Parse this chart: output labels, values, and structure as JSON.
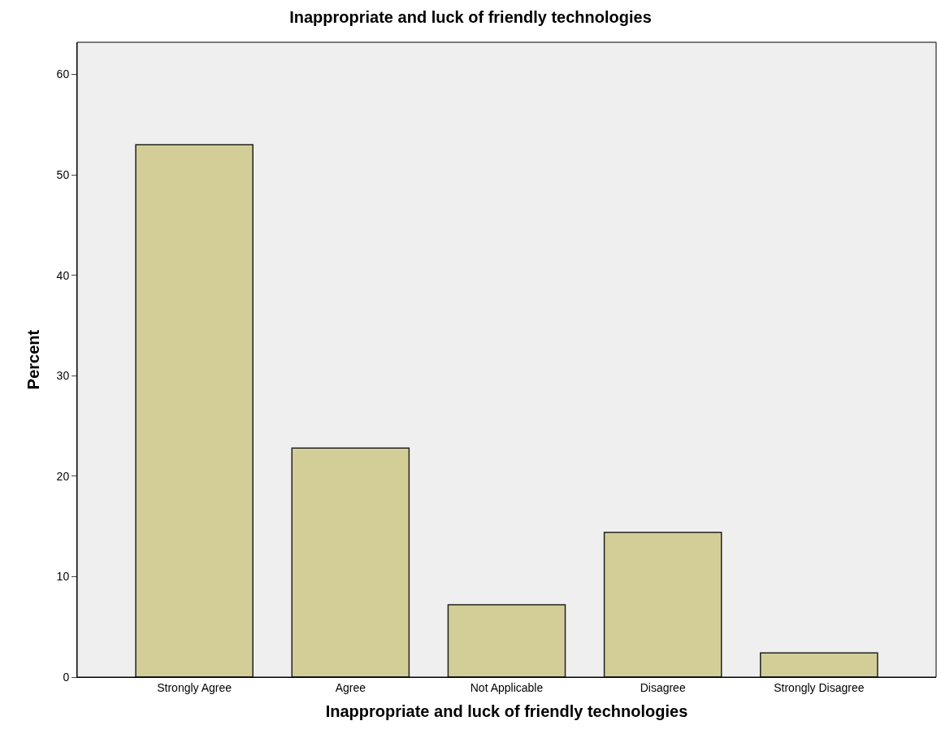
{
  "chart_data": {
    "type": "bar",
    "title": "Inappropriate and luck of friendly technologies",
    "xlabel": "Inappropriate and luck of friendly technologies",
    "ylabel": "Percent",
    "categories": [
      "Strongly Agree",
      "Agree",
      "Not Applicable",
      "Disagree",
      "Strongly Disagree"
    ],
    "values": [
      53.0,
      22.8,
      7.2,
      14.4,
      2.4
    ],
    "color": "#d3ce97",
    "ylim": [
      0,
      63.2
    ],
    "yticks": [
      0,
      10,
      20,
      30,
      40,
      50,
      60
    ],
    "grid": false
  }
}
